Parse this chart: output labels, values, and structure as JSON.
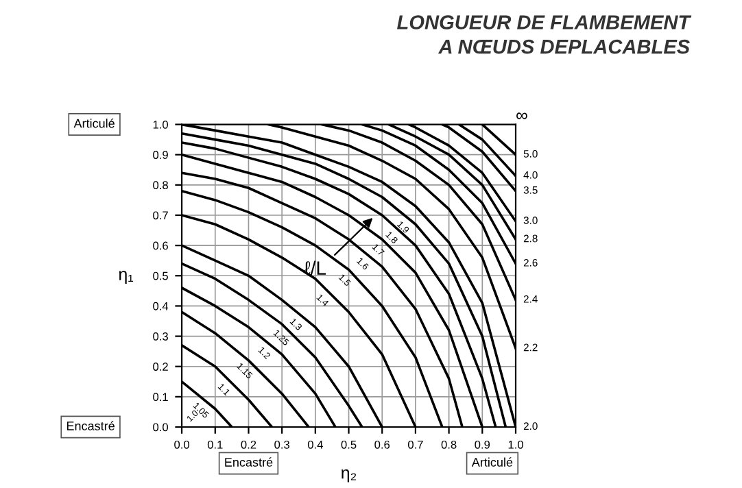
{
  "chart_data": {
    "type": "line",
    "title": "LONGUEUR DE FLAMBEMENT\nA NŒUDS DEPLACABLES",
    "xlabel": "η₂",
    "ylabel": "η₁",
    "xlim": [
      0,
      1
    ],
    "ylim": [
      0,
      1
    ],
    "xticks": [
      {
        "value": 0,
        "label": "0.0"
      },
      {
        "value": 0.1,
        "label": "0.1"
      },
      {
        "value": 0.2,
        "label": "0.2"
      },
      {
        "value": 0.3,
        "label": "0.3"
      },
      {
        "value": 0.4,
        "label": "0.4"
      },
      {
        "value": 0.5,
        "label": "0.5"
      },
      {
        "value": 0.6,
        "label": "0.6"
      },
      {
        "value": 0.7,
        "label": "0.7"
      },
      {
        "value": 0.8,
        "label": "0.8"
      },
      {
        "value": 0.9,
        "label": "0.9"
      },
      {
        "value": 1,
        "label": "1.0"
      }
    ],
    "yticks": [
      {
        "value": 0,
        "label": "0.0"
      },
      {
        "value": 0.1,
        "label": "0.1"
      },
      {
        "value": 0.2,
        "label": "0.2"
      },
      {
        "value": 0.3,
        "label": "0.3"
      },
      {
        "value": 0.4,
        "label": "0.4"
      },
      {
        "value": 0.5,
        "label": "0.5"
      },
      {
        "value": 0.6,
        "label": "0.6"
      },
      {
        "value": 0.7,
        "label": "0.7"
      },
      {
        "value": 0.8,
        "label": "0.8"
      },
      {
        "value": 0.9,
        "label": "0.9"
      },
      {
        "value": 1,
        "label": "1.0"
      }
    ],
    "grid": true,
    "marker": "none",
    "line_style": "solid",
    "legend": false,
    "series": [
      {
        "name": "1.05",
        "color": "#000000",
        "x": [
          0.0,
          0.1,
          0.15
        ],
        "values": [
          0.15,
          0.06,
          0.0
        ]
      },
      {
        "name": "1.1",
        "color": "#000000",
        "x": [
          0.0,
          0.1,
          0.2,
          0.27
        ],
        "values": [
          0.27,
          0.2,
          0.09,
          0.0
        ]
      },
      {
        "name": "1.15",
        "color": "#000000",
        "x": [
          0.0,
          0.1,
          0.2,
          0.3,
          0.38
        ],
        "values": [
          0.38,
          0.31,
          0.22,
          0.11,
          0.0
        ]
      },
      {
        "name": "1.2",
        "color": "#000000",
        "x": [
          0.0,
          0.1,
          0.2,
          0.3,
          0.4,
          0.46
        ],
        "values": [
          0.46,
          0.4,
          0.33,
          0.24,
          0.11,
          0.0
        ]
      },
      {
        "name": "1.25",
        "color": "#000000",
        "x": [
          0.0,
          0.1,
          0.2,
          0.3,
          0.4,
          0.5,
          0.54
        ],
        "values": [
          0.54,
          0.49,
          0.42,
          0.34,
          0.23,
          0.07,
          0.0
        ]
      },
      {
        "name": "1.3",
        "color": "#000000",
        "x": [
          0.0,
          0.1,
          0.2,
          0.3,
          0.4,
          0.5,
          0.6
        ],
        "values": [
          0.6,
          0.55,
          0.5,
          0.42,
          0.33,
          0.2,
          0.0
        ]
      },
      {
        "name": "1.4",
        "color": "#000000",
        "x": [
          0.0,
          0.1,
          0.2,
          0.3,
          0.4,
          0.5,
          0.6,
          0.7
        ],
        "values": [
          0.7,
          0.67,
          0.62,
          0.56,
          0.49,
          0.38,
          0.24,
          0.0
        ]
      },
      {
        "name": "1.5",
        "color": "#000000",
        "x": [
          0.0,
          0.1,
          0.2,
          0.3,
          0.4,
          0.5,
          0.6,
          0.7,
          0.78
        ],
        "values": [
          0.78,
          0.75,
          0.71,
          0.66,
          0.6,
          0.52,
          0.4,
          0.23,
          0.0
        ]
      },
      {
        "name": "1.6",
        "color": "#000000",
        "x": [
          0.0,
          0.1,
          0.2,
          0.3,
          0.4,
          0.5,
          0.6,
          0.7,
          0.8,
          0.84
        ],
        "values": [
          0.84,
          0.82,
          0.79,
          0.74,
          0.69,
          0.62,
          0.53,
          0.39,
          0.16,
          0.0
        ]
      },
      {
        "name": "1.7",
        "color": "#000000",
        "x": [
          0.0,
          0.1,
          0.2,
          0.3,
          0.4,
          0.5,
          0.6,
          0.7,
          0.8,
          0.9
        ],
        "values": [
          0.9,
          0.87,
          0.84,
          0.81,
          0.76,
          0.7,
          0.62,
          0.51,
          0.32,
          0.0
        ]
      },
      {
        "name": "1.8",
        "color": "#000000",
        "x": [
          0.0,
          0.1,
          0.2,
          0.3,
          0.4,
          0.5,
          0.6,
          0.7,
          0.8,
          0.9,
          0.94
        ],
        "values": [
          0.94,
          0.92,
          0.89,
          0.86,
          0.82,
          0.77,
          0.7,
          0.6,
          0.44,
          0.16,
          0.0
        ]
      },
      {
        "name": "1.9",
        "color": "#000000",
        "x": [
          0.0,
          0.1,
          0.2,
          0.3,
          0.4,
          0.5,
          0.6,
          0.7,
          0.8,
          0.9,
          0.97
        ],
        "values": [
          0.97,
          0.95,
          0.93,
          0.9,
          0.87,
          0.82,
          0.76,
          0.67,
          0.54,
          0.3,
          0.0
        ]
      },
      {
        "name": "2.0",
        "color": "#000000",
        "x": [
          0.0,
          0.1,
          0.2,
          0.3,
          0.4,
          0.5,
          0.6,
          0.7,
          0.8,
          0.9,
          1.0
        ],
        "values": [
          1.0,
          0.98,
          0.96,
          0.94,
          0.9,
          0.86,
          0.81,
          0.73,
          0.61,
          0.41,
          0.0
        ]
      },
      {
        "name": "2.2",
        "color": "#000000",
        "x": [
          0.26,
          0.3,
          0.4,
          0.5,
          0.6,
          0.7,
          0.8,
          0.9,
          1.0
        ],
        "values": [
          1.0,
          0.99,
          0.96,
          0.93,
          0.88,
          0.82,
          0.72,
          0.56,
          0.26
        ]
      },
      {
        "name": "2.4",
        "color": "#000000",
        "x": [
          0.42,
          0.5,
          0.6,
          0.7,
          0.8,
          0.9,
          1.0
        ],
        "values": [
          1.0,
          0.98,
          0.94,
          0.88,
          0.8,
          0.67,
          0.42
        ]
      },
      {
        "name": "2.6",
        "color": "#000000",
        "x": [
          0.54,
          0.6,
          0.7,
          0.8,
          0.9,
          1.0
        ],
        "values": [
          1.0,
          0.98,
          0.93,
          0.85,
          0.74,
          0.54
        ]
      },
      {
        "name": "2.8",
        "color": "#000000",
        "x": [
          0.62,
          0.7,
          0.8,
          0.9,
          1.0
        ],
        "values": [
          1.0,
          0.96,
          0.9,
          0.8,
          0.62
        ]
      },
      {
        "name": "3.0",
        "color": "#000000",
        "x": [
          0.68,
          0.7,
          0.8,
          0.9,
          1.0
        ],
        "values": [
          1.0,
          0.99,
          0.93,
          0.84,
          0.68
        ]
      },
      {
        "name": "3.5",
        "color": "#000000",
        "x": [
          0.78,
          0.8,
          0.9,
          1.0
        ],
        "values": [
          1.0,
          0.99,
          0.91,
          0.78
        ]
      },
      {
        "name": "4.0",
        "color": "#000000",
        "x": [
          0.83,
          0.9,
          1.0
        ],
        "values": [
          1.0,
          0.95,
          0.83
        ]
      },
      {
        "name": "5.0",
        "color": "#000000",
        "x": [
          0.9,
          1.0
        ],
        "values": [
          1.0,
          0.9
        ]
      }
    ],
    "annotations": [
      "∞",
      "1.0",
      "ℓ/L",
      "Articulé",
      "Encastré",
      "Encastré",
      "Articulé"
    ]
  }
}
